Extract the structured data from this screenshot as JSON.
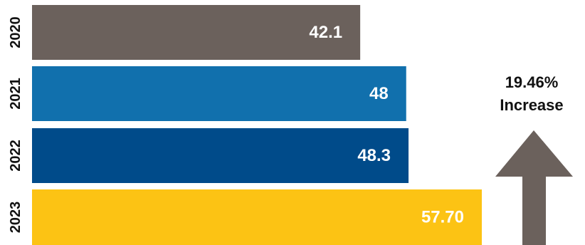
{
  "chart_data": {
    "type": "bar",
    "orientation": "horizontal",
    "title": "",
    "xlabel": "",
    "ylabel": "",
    "categories": [
      "2020",
      "2021",
      "2022",
      "2023"
    ],
    "values": [
      42.1,
      48,
      48.3,
      57.7
    ],
    "value_labels": [
      "42.1",
      "48",
      "48.3",
      "57.70"
    ],
    "colors": [
      "#6b615c",
      "#1170ad",
      "#004b8a",
      "#fcc314"
    ],
    "xlim": [
      0,
      57.7
    ],
    "grid": false,
    "legend": "none"
  },
  "annotation": {
    "percent": "19.46%",
    "label": "Increase",
    "arrow_icon": "up-arrow-icon",
    "arrow_color": "#6b615c"
  }
}
